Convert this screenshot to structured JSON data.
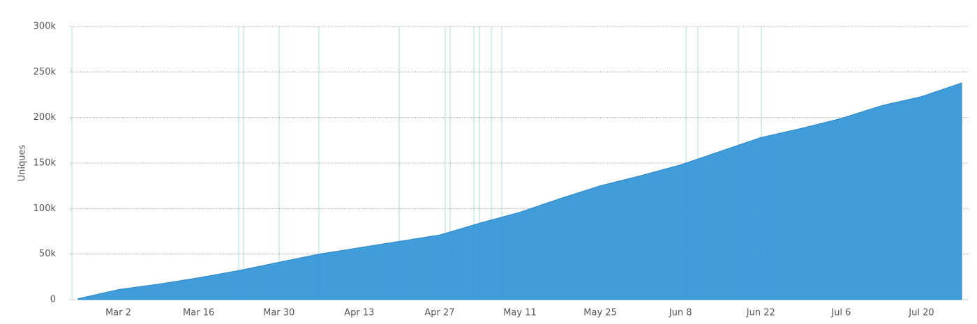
{
  "chart_data": {
    "type": "area",
    "y_label": "Uniques",
    "categories": [
      null,
      "Mar 2",
      null,
      "Mar 16",
      null,
      "Mar 30",
      null,
      "Apr 13",
      null,
      "Apr 27",
      null,
      "May 11",
      null,
      "May 25",
      null,
      "Jun 8",
      null,
      "Jun 22",
      null,
      "Jul 6",
      null,
      "Jul 20",
      null
    ],
    "values": [
      1000,
      11000,
      17000,
      24000,
      32000,
      41000,
      50000,
      57000,
      64000,
      71000,
      84000,
      96000,
      111000,
      125000,
      136000,
      148000,
      163000,
      178000,
      188000,
      199000,
      213000,
      223000,
      238000
    ],
    "color": "#3a9ad9",
    "ylim": [
      0,
      300000
    ],
    "yticks": [
      0,
      {
        "value": 50000,
        "label": "50k"
      },
      {
        "value": 100000,
        "label": "100k"
      },
      {
        "value": 150000,
        "label": "150k"
      },
      {
        "value": 200000,
        "label": "200k"
      },
      {
        "value": 250000,
        "label": "250k"
      },
      {
        "value": 300000,
        "label": "300k"
      }
    ],
    "grid": true
  }
}
